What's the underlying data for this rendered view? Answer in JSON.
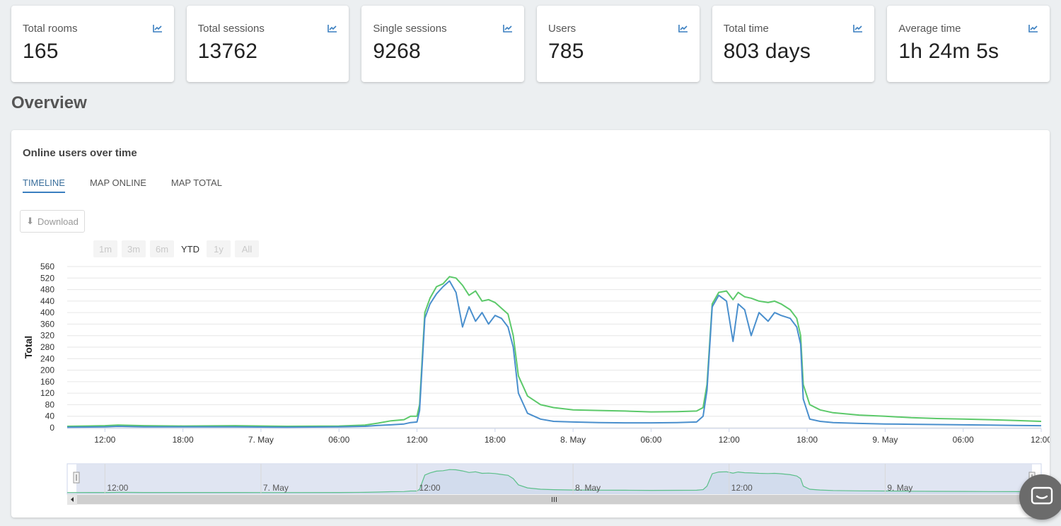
{
  "stats": [
    {
      "label": "Total rooms",
      "value": "165",
      "icon": "line-chart-icon"
    },
    {
      "label": "Total sessions",
      "value": "13762",
      "icon": "line-chart-icon"
    },
    {
      "label": "Single sessions",
      "value": "9268",
      "icon": "line-chart-icon"
    },
    {
      "label": "Users",
      "value": "785",
      "icon": "line-chart-icon"
    },
    {
      "label": "Total time",
      "value": "803 days",
      "icon": "line-chart-icon"
    },
    {
      "label": "Average time",
      "value": "1h 24m 5s",
      "icon": "line-chart-icon"
    }
  ],
  "overview": {
    "title": "Overview"
  },
  "panel": {
    "title": "Online users over time",
    "tabs": [
      "TIMELINE",
      "MAP ONLINE",
      "MAP TOTAL"
    ],
    "active_tab": "TIMELINE",
    "download_label": "Download",
    "download_icon": "download-arrow-icon",
    "ranges": [
      "1m",
      "3m",
      "6m",
      "YTD",
      "1y",
      "All"
    ],
    "selected_range": "YTD"
  },
  "chart_data": {
    "type": "line",
    "ylabel": "Total",
    "ylim": [
      0,
      560
    ],
    "yticks": [
      0,
      40,
      80,
      120,
      160,
      200,
      240,
      280,
      320,
      360,
      400,
      440,
      480,
      520,
      560
    ],
    "xticks": [
      "12:00",
      "18:00",
      "7. May",
      "06:00",
      "12:00",
      "18:00",
      "8. May",
      "06:00",
      "12:00",
      "18:00",
      "9. May",
      "06:00",
      "12:00"
    ],
    "xticks_hours": [
      12,
      18,
      24,
      30,
      36,
      42,
      48,
      54,
      60,
      66,
      72,
      78,
      84
    ],
    "xrange_hours": [
      9.1,
      84.0
    ],
    "series": [
      {
        "color": "#5cc96a",
        "points": [
          [
            9.1,
            5
          ],
          [
            12,
            7
          ],
          [
            13,
            9
          ],
          [
            15,
            7
          ],
          [
            18,
            6
          ],
          [
            22,
            7
          ],
          [
            26,
            5
          ],
          [
            30,
            6
          ],
          [
            32,
            9
          ],
          [
            33,
            16
          ],
          [
            34,
            24
          ],
          [
            35,
            28
          ],
          [
            35.5,
            40
          ],
          [
            36,
            40
          ],
          [
            36.2,
            80
          ],
          [
            36.6,
            400
          ],
          [
            37,
            450
          ],
          [
            37.5,
            490
          ],
          [
            38,
            500
          ],
          [
            38.5,
            525
          ],
          [
            39,
            520
          ],
          [
            39.5,
            495
          ],
          [
            40,
            460
          ],
          [
            40.5,
            475
          ],
          [
            41,
            440
          ],
          [
            41.5,
            445
          ],
          [
            42,
            435
          ],
          [
            42.5,
            415
          ],
          [
            43,
            395
          ],
          [
            43.4,
            320
          ],
          [
            43.8,
            180
          ],
          [
            44.5,
            110
          ],
          [
            45.5,
            80
          ],
          [
            46.5,
            70
          ],
          [
            48,
            62
          ],
          [
            50,
            60
          ],
          [
            52,
            58
          ],
          [
            54,
            55
          ],
          [
            56,
            56
          ],
          [
            57.5,
            58
          ],
          [
            58,
            70
          ],
          [
            58.3,
            150
          ],
          [
            58.7,
            430
          ],
          [
            59.2,
            470
          ],
          [
            59.8,
            475
          ],
          [
            60.3,
            445
          ],
          [
            60.7,
            470
          ],
          [
            61.2,
            455
          ],
          [
            61.7,
            450
          ],
          [
            62.3,
            440
          ],
          [
            63,
            435
          ],
          [
            63.5,
            440
          ],
          [
            64,
            430
          ],
          [
            64.7,
            410
          ],
          [
            65.2,
            380
          ],
          [
            65.5,
            320
          ],
          [
            65.7,
            150
          ],
          [
            66.2,
            80
          ],
          [
            67,
            62
          ],
          [
            68,
            52
          ],
          [
            70,
            44
          ],
          [
            72,
            40
          ],
          [
            74,
            35
          ],
          [
            76,
            32
          ],
          [
            78,
            30
          ],
          [
            80,
            28
          ],
          [
            82,
            25
          ],
          [
            84,
            22
          ]
        ]
      },
      {
        "color": "#4a8fcd",
        "points": [
          [
            9.1,
            2
          ],
          [
            12,
            3
          ],
          [
            13,
            5
          ],
          [
            15,
            3
          ],
          [
            18,
            3
          ],
          [
            22,
            3
          ],
          [
            26,
            2
          ],
          [
            30,
            3
          ],
          [
            32,
            5
          ],
          [
            33,
            8
          ],
          [
            34,
            10
          ],
          [
            35,
            13
          ],
          [
            35.5,
            18
          ],
          [
            36,
            20
          ],
          [
            36.2,
            60
          ],
          [
            36.6,
            380
          ],
          [
            37,
            430
          ],
          [
            37.5,
            465
          ],
          [
            38,
            490
          ],
          [
            38.5,
            510
          ],
          [
            39,
            470
          ],
          [
            39.5,
            350
          ],
          [
            40,
            420
          ],
          [
            40.5,
            370
          ],
          [
            41,
            400
          ],
          [
            41.5,
            360
          ],
          [
            42,
            390
          ],
          [
            42.5,
            380
          ],
          [
            43,
            350
          ],
          [
            43.4,
            280
          ],
          [
            43.8,
            120
          ],
          [
            44.5,
            50
          ],
          [
            45.5,
            30
          ],
          [
            46.5,
            22
          ],
          [
            48,
            20
          ],
          [
            50,
            18
          ],
          [
            52,
            17
          ],
          [
            54,
            17
          ],
          [
            56,
            18
          ],
          [
            57.5,
            20
          ],
          [
            58,
            40
          ],
          [
            58.3,
            130
          ],
          [
            58.7,
            420
          ],
          [
            59.2,
            460
          ],
          [
            59.8,
            440
          ],
          [
            60.3,
            300
          ],
          [
            60.7,
            430
          ],
          [
            61.2,
            410
          ],
          [
            61.7,
            320
          ],
          [
            62.3,
            400
          ],
          [
            63,
            370
          ],
          [
            63.5,
            400
          ],
          [
            64,
            390
          ],
          [
            64.7,
            380
          ],
          [
            65.2,
            350
          ],
          [
            65.5,
            290
          ],
          [
            65.7,
            100
          ],
          [
            66.2,
            30
          ],
          [
            67,
            22
          ],
          [
            68,
            18
          ],
          [
            70,
            15
          ],
          [
            72,
            13
          ],
          [
            74,
            12
          ],
          [
            76,
            11
          ],
          [
            78,
            10
          ],
          [
            80,
            9
          ],
          [
            82,
            8
          ],
          [
            84,
            7
          ]
        ]
      }
    ],
    "navigator": {
      "xticks": [
        "12:00",
        "7. May",
        "12:00",
        "8. May",
        "12:00",
        "9. May"
      ],
      "xticks_hours": [
        12,
        24,
        36,
        48,
        60,
        72
      ]
    }
  }
}
